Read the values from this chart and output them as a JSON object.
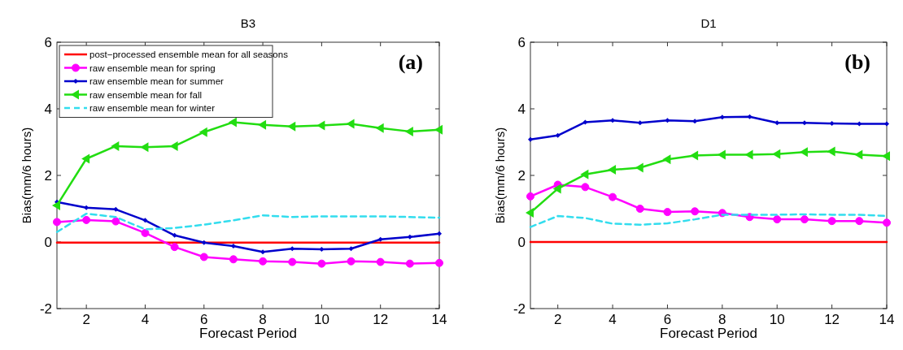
{
  "chart_data": [
    {
      "type": "line",
      "title": "B3",
      "xlabel": "Forecast Period",
      "ylabel": "Bias(mm/6 hours)",
      "annotations": [
        "(a)"
      ],
      "x": [
        1,
        2,
        3,
        4,
        5,
        6,
        7,
        8,
        9,
        10,
        11,
        12,
        13,
        14
      ],
      "xlim": [
        1,
        14
      ],
      "xticks": [
        2,
        4,
        6,
        8,
        10,
        12,
        14
      ],
      "ylim": [
        -2,
        6
      ],
      "yticks": [
        -2,
        0,
        2,
        4,
        6
      ],
      "grid": false,
      "legend": "top left",
      "series": [
        {
          "name": "post−processed ensemble mean for all seasons",
          "color": "#ff0000",
          "marker": "none",
          "line_style": "solid",
          "values": [
            -0.02,
            -0.02,
            -0.02,
            -0.02,
            -0.02,
            -0.02,
            -0.02,
            -0.02,
            -0.02,
            -0.02,
            -0.02,
            -0.02,
            -0.02,
            -0.02
          ]
        },
        {
          "name": "raw ensemble mean for spring",
          "color": "#ff00ff",
          "marker": "circle",
          "line_style": "solid",
          "values": [
            0.6,
            0.66,
            0.62,
            0.27,
            -0.15,
            -0.45,
            -0.52,
            -0.58,
            -0.6,
            -0.65,
            -0.58,
            -0.6,
            -0.65,
            -0.63
          ]
        },
        {
          "name": "raw ensemble mean for summer",
          "color": "#0000cc",
          "marker": "diamond",
          "line_style": "solid",
          "values": [
            1.2,
            1.03,
            0.98,
            0.65,
            0.2,
            -0.02,
            -0.12,
            -0.3,
            -0.2,
            -0.22,
            -0.2,
            0.08,
            0.15,
            0.25
          ]
        },
        {
          "name": "raw ensemble mean for fall",
          "color": "#22dd11",
          "marker": "triangle",
          "line_style": "solid",
          "values": [
            1.1,
            2.5,
            2.88,
            2.85,
            2.88,
            3.3,
            3.6,
            3.52,
            3.47,
            3.5,
            3.55,
            3.42,
            3.32,
            3.37
          ]
        },
        {
          "name": "raw ensemble mean for winter",
          "color": "#33ddee",
          "marker": "none",
          "line_style": "dashed",
          "values": [
            0.3,
            0.85,
            0.75,
            0.38,
            0.42,
            0.52,
            0.65,
            0.8,
            0.75,
            0.77,
            0.77,
            0.77,
            0.75,
            0.73
          ]
        }
      ]
    },
    {
      "type": "line",
      "title": "D1",
      "xlabel": "Forecast Period",
      "ylabel": "Bias(mm/6 hours)",
      "annotations": [
        "(b)"
      ],
      "x": [
        1,
        2,
        3,
        4,
        5,
        6,
        7,
        8,
        9,
        10,
        11,
        12,
        13,
        14
      ],
      "xlim": [
        1,
        14
      ],
      "xticks": [
        2,
        4,
        6,
        8,
        10,
        12,
        14
      ],
      "ylim": [
        -2,
        6
      ],
      "yticks": [
        -2,
        0,
        2,
        4,
        6
      ],
      "grid": false,
      "legend": false,
      "series": [
        {
          "color": "#ff0000",
          "marker": "none",
          "line_style": "solid",
          "values": [
            0,
            0,
            0,
            0,
            0,
            0,
            0,
            0,
            0,
            0,
            0,
            0,
            0,
            0
          ]
        },
        {
          "color": "#ff00ff",
          "marker": "circle",
          "line_style": "solid",
          "values": [
            1.37,
            1.72,
            1.65,
            1.35,
            1.0,
            0.9,
            0.92,
            0.87,
            0.75,
            0.68,
            0.68,
            0.63,
            0.63,
            0.58
          ]
        },
        {
          "color": "#0000cc",
          "marker": "diamond",
          "line_style": "solid",
          "values": [
            3.08,
            3.2,
            3.6,
            3.65,
            3.58,
            3.65,
            3.63,
            3.75,
            3.76,
            3.58,
            3.58,
            3.56,
            3.55,
            3.55
          ]
        },
        {
          "color": "#22dd11",
          "marker": "triangle",
          "line_style": "solid",
          "values": [
            0.88,
            1.6,
            2.03,
            2.17,
            2.23,
            2.48,
            2.6,
            2.62,
            2.62,
            2.64,
            2.7,
            2.72,
            2.62,
            2.58
          ]
        },
        {
          "color": "#33ddee",
          "marker": "none",
          "line_style": "dashed",
          "values": [
            0.45,
            0.78,
            0.72,
            0.55,
            0.52,
            0.56,
            0.68,
            0.82,
            0.82,
            0.82,
            0.83,
            0.82,
            0.82,
            0.78
          ]
        }
      ]
    }
  ]
}
